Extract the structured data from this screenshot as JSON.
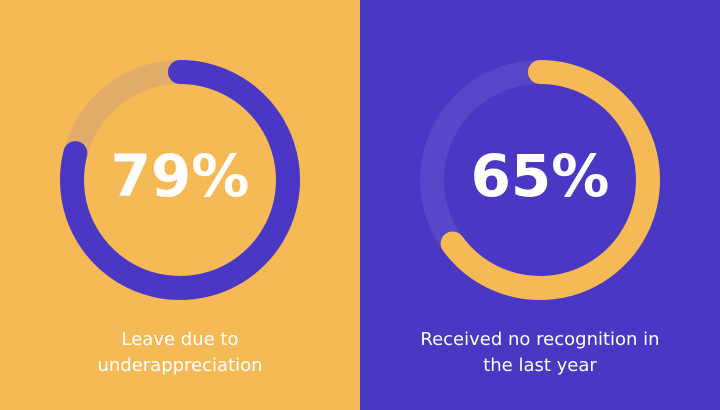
{
  "chart_data": [
    {
      "type": "gauge",
      "values": [
        79
      ],
      "value_labels": [
        "79%"
      ],
      "ylim": [
        0,
        100
      ],
      "caption": "Leave due to underappreciation",
      "color": "#4a38c4",
      "track_color": "#e2ad68",
      "background": "#f5b955"
    },
    {
      "type": "gauge",
      "values": [
        65
      ],
      "value_labels": [
        "65%"
      ],
      "ylim": [
        0,
        100
      ],
      "caption": "Received no recognition in the last year",
      "color": "#f5b955",
      "track_color": "#5646c9",
      "background": "#4a38c4"
    }
  ]
}
